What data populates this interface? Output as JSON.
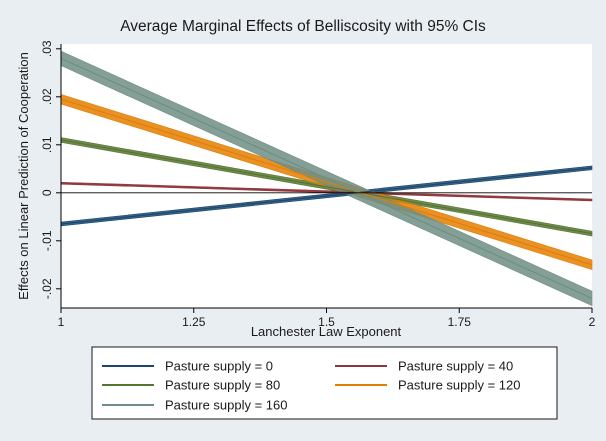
{
  "chart_data": {
    "type": "line",
    "title": "Average Marginal Effects of Belliscosity with 95% CIs",
    "xlabel": "Lanchester Law Exponent",
    "ylabel": "Effects on Linear Prediction of Cooperation",
    "xlim": [
      1,
      2
    ],
    "ylim": [
      -0.024,
      0.031
    ],
    "x_ticks": [
      1,
      1.25,
      1.5,
      1.75,
      2
    ],
    "x_tick_labels": [
      "1",
      "1.25",
      "1.5",
      "1.75",
      "2"
    ],
    "y_ticks": [
      -0.02,
      -0.01,
      0,
      0.01,
      0.02,
      0.03
    ],
    "y_tick_labels": [
      "-.02",
      "-.01",
      "0",
      ".01",
      ".02",
      ".03"
    ],
    "zero_line": 0,
    "grid": false,
    "legend_position": "bottom",
    "x": [
      1,
      2
    ],
    "series": [
      {
        "name": "Pasture supply = 0",
        "values": [
          -0.0065,
          0.0052
        ],
        "ci_halfwidth": [
          0.0004,
          0.0004
        ],
        "color": "#1a476f"
      },
      {
        "name": "Pasture supply = 40",
        "values": [
          0.002,
          -0.0015
        ],
        "ci_halfwidth": [
          0.0002,
          0.0002
        ],
        "color": "#90353b"
      },
      {
        "name": "Pasture supply = 80",
        "values": [
          0.011,
          -0.0085
        ],
        "ci_halfwidth": [
          0.0005,
          0.0005
        ],
        "color": "#55752f"
      },
      {
        "name": "Pasture supply = 120",
        "values": [
          0.0195,
          -0.015
        ],
        "ci_halfwidth": [
          0.001,
          0.001
        ],
        "color": "#e37e00"
      },
      {
        "name": "Pasture supply = 160",
        "values": [
          0.028,
          -0.022
        ],
        "ci_halfwidth": [
          0.0015,
          0.0015
        ],
        "color": "#6e8e84"
      }
    ]
  }
}
